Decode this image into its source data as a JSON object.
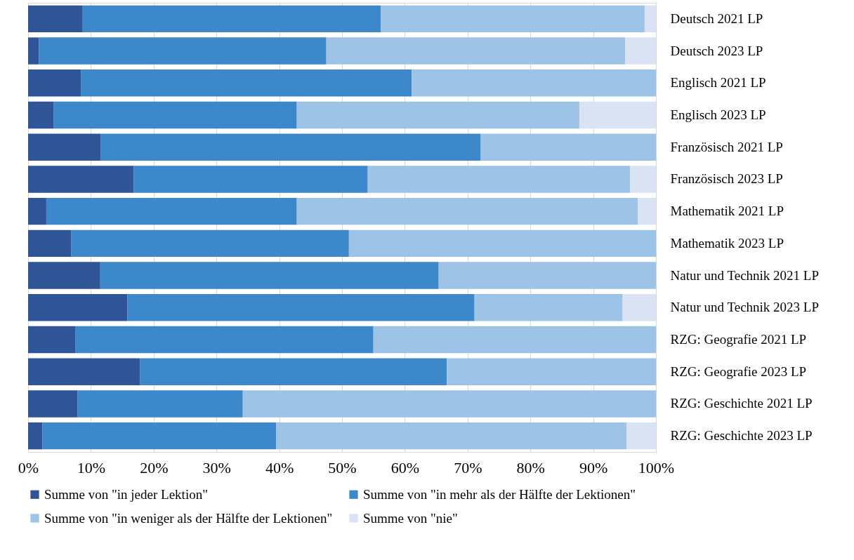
{
  "chart_data": {
    "type": "bar",
    "orientation": "horizontal",
    "stacked": true,
    "categories": [
      "Deutsch 2021 LP",
      "Deutsch 2023 LP",
      "Englisch 2021 LP",
      "Englisch 2023 LP",
      "Französisch 2021 LP",
      "Französisch 2023 LP",
      "Mathematik 2021 LP",
      "Mathematik 2023 LP",
      "Natur und Technik 2021 LP",
      "Natur und Technik 2023 LP",
      "RZG: Geografie 2021 LP",
      "RZG: Geografie 2023 LP",
      "RZG: Geschichte 2021 LP",
      "RZG: Geschichte 2023 LP"
    ],
    "series": [
      {
        "name": "Summe von \"in jeder Lektion\"",
        "color": "#2f5597",
        "values": [
          8.7,
          1.7,
          8.4,
          4.1,
          11.6,
          16.8,
          2.9,
          6.9,
          11.5,
          15.8,
          7.5,
          17.8,
          7.9,
          2.3
        ]
      },
      {
        "name": "Summe von \"in mehr als der Hälfte der Lektionen\"",
        "color": "#3d87cb",
        "values": [
          47.5,
          45.8,
          52.7,
          38.7,
          60.5,
          37.3,
          39.9,
          44.2,
          53.9,
          55.3,
          47.5,
          48.9,
          26.3,
          37.2
        ]
      },
      {
        "name": "Summe von \"in weniger als der Hälfte der Lektionen\"",
        "color": "#9dc3e6",
        "values": [
          42.0,
          47.6,
          38.9,
          45.0,
          27.9,
          41.8,
          54.3,
          48.9,
          34.6,
          23.6,
          45.0,
          33.3,
          65.8,
          55.8
        ]
      },
      {
        "name": "Summe von \"nie\"",
        "color": "#dae3f3",
        "values": [
          1.8,
          4.9,
          null,
          12.2,
          null,
          4.1,
          2.9,
          null,
          null,
          5.3,
          null,
          null,
          null,
          4.7
        ]
      }
    ],
    "xlim": [
      0,
      100
    ],
    "xticks": [
      {
        "value": 0,
        "label": "0%"
      },
      {
        "value": 10,
        "label": "10%"
      },
      {
        "value": 20,
        "label": "20%"
      },
      {
        "value": 30,
        "label": "30%"
      },
      {
        "value": 40,
        "label": "40%"
      },
      {
        "value": 50,
        "label": "50%"
      },
      {
        "value": 60,
        "label": "60%"
      },
      {
        "value": 70,
        "label": "70%"
      },
      {
        "value": 80,
        "label": "80%"
      },
      {
        "value": 90,
        "label": "90%"
      },
      {
        "value": 100,
        "label": "100%"
      }
    ],
    "grid": "x",
    "legend": "bottom"
  }
}
